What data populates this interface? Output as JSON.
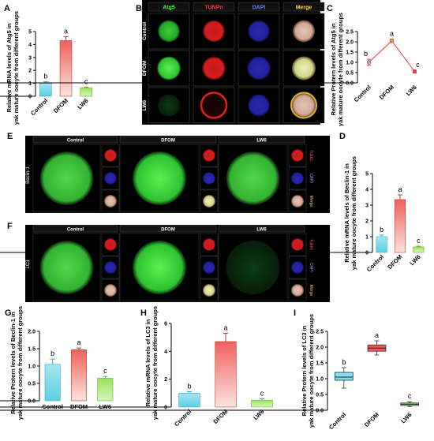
{
  "panel_letters": [
    "A",
    "B",
    "C",
    "D",
    "E",
    "F",
    "G",
    "H",
    "I"
  ],
  "colors": {
    "control": "#7fd8e8",
    "dfom": "#e85a55",
    "lw6": "#9be35a"
  },
  "chart_data": [
    {
      "id": "A",
      "type": "bar",
      "ylabel": [
        "Relative mRNA levels of Atg5 in",
        "yak mature oocyte from different groups"
      ],
      "categories": [
        "Control",
        "DFOM",
        "LW6"
      ],
      "values": [
        1.0,
        4.3,
        0.65
      ],
      "errors": [
        0.12,
        0.3,
        0.05
      ],
      "letters": [
        "b",
        "a",
        "c"
      ],
      "ylim": [
        0,
        5
      ],
      "yticks": [
        0,
        1,
        2,
        3,
        4,
        5
      ]
    },
    {
      "id": "C",
      "type": "line",
      "ylabel": [
        "Relative Protern levels of Atg5 in",
        "yak mature oocyte from different groups"
      ],
      "categories": [
        "Control",
        "DFOM",
        "LW6"
      ],
      "values": [
        1.0,
        2.05,
        0.55
      ],
      "errors": [
        0.15,
        0.08,
        0.07
      ],
      "letters": [
        "b",
        "a",
        "c"
      ],
      "ylim": [
        0,
        2.5
      ],
      "yticks": [
        0,
        0.5,
        1.0,
        1.5,
        2.0,
        2.5
      ]
    },
    {
      "id": "D",
      "type": "bar",
      "ylabel": [
        "Relative mRNA levels of Beclin-1 in",
        "yak mature oocyte from different groups"
      ],
      "categories": [
        "Control",
        "DFOM",
        "LW6"
      ],
      "values": [
        1.0,
        3.35,
        0.35
      ],
      "errors": [
        0.1,
        0.3,
        0.05
      ],
      "letters": [
        "b",
        "a",
        "c"
      ],
      "ylim": [
        0,
        5
      ],
      "yticks": [
        0,
        1,
        2,
        3,
        4,
        5
      ]
    },
    {
      "id": "G",
      "type": "bar",
      "ylabel": [
        "Relative Protern levels of Beclin-1 in",
        "yak mature oocyte from different groups"
      ],
      "categories": [
        "Control",
        "DFOM",
        "LW6"
      ],
      "values": [
        1.05,
        1.47,
        0.65
      ],
      "errors": [
        0.15,
        0.05,
        0.05
      ],
      "letters": [
        "b",
        "a",
        "c"
      ],
      "ylim": [
        0,
        2.0
      ],
      "yticks": [
        0,
        0.5,
        1.0,
        1.5,
        2.0
      ]
    },
    {
      "id": "H",
      "type": "bar",
      "ylabel": [
        "Relative mRNA levels of LC3 in",
        "yak mature oocyte from different groups"
      ],
      "categories": [
        "Control",
        "DFOM",
        "LW6"
      ],
      "values": [
        1.0,
        4.7,
        0.5
      ],
      "errors": [
        0.1,
        0.6,
        0.1
      ],
      "letters": [
        "b",
        "a",
        "c"
      ],
      "ylim": [
        0,
        6
      ],
      "yticks": [
        0,
        2,
        4,
        6
      ]
    },
    {
      "id": "I",
      "type": "box",
      "ylabel": [
        "Relative Protern levels of LC3 in",
        "yak mature oocyte from different groups"
      ],
      "categories": [
        "Control",
        "DFOM",
        "LW6"
      ],
      "boxes": [
        {
          "min": 0.7,
          "q1": 0.95,
          "median": 1.05,
          "q3": 1.2,
          "max": 1.35
        },
        {
          "min": 1.75,
          "q1": 1.87,
          "median": 1.97,
          "q3": 2.07,
          "max": 2.2
        },
        {
          "min": 0.12,
          "q1": 0.15,
          "median": 0.19,
          "q3": 0.23,
          "max": 0.27
        }
      ],
      "letters": [
        "b",
        "a",
        "c"
      ],
      "ylim": [
        0,
        2.5
      ],
      "yticks": [
        0,
        0.5,
        1.0,
        1.5,
        2.0,
        2.5
      ]
    }
  ],
  "panel_B": {
    "columns": [
      "Atg5",
      "TUNPn",
      "DAPI",
      "Merge"
    ],
    "rows": [
      "Control",
      "DFOM",
      "LW6"
    ]
  },
  "panel_E": {
    "headers": [
      "Control",
      "DFOM",
      "LW6"
    ],
    "row_label": "Beclin-1",
    "side_labels": [
      "Tubkn",
      "DAPI",
      "Merge"
    ]
  },
  "panel_F": {
    "headers": [
      "Control",
      "DFOM",
      "LW6"
    ],
    "row_label": "LC3",
    "side_labels": [
      "Tubkn",
      "DAPI",
      "Merge"
    ]
  }
}
